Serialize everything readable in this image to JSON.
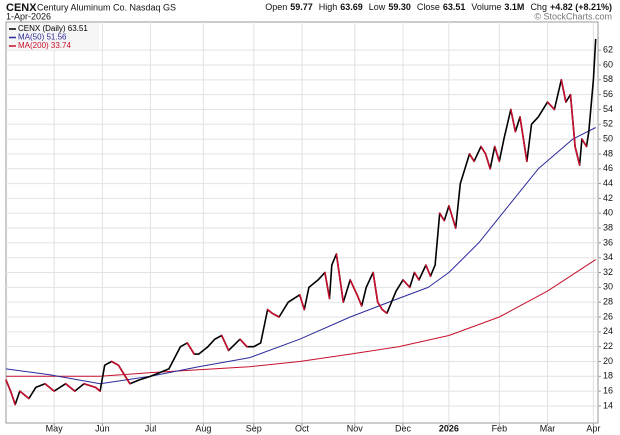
{
  "chart_data": {
    "type": "line",
    "header": {
      "symbol": "CENX",
      "name": "Century Aluminum Co. Nasdaq GS",
      "date": "1-Apr-2026",
      "copyright": "© StockCharts.com",
      "quote": [
        {
          "label": "Open",
          "value": "59.77"
        },
        {
          "label": "High",
          "value": "63.69"
        },
        {
          "label": "Low",
          "value": "59.30"
        },
        {
          "label": "Close",
          "value": "63.51"
        },
        {
          "label": "Volume",
          "value": "3.1M"
        },
        {
          "label": "Chg",
          "value": "+4.82 (+8.21%)"
        }
      ]
    },
    "x": [
      0,
      2,
      4,
      6,
      10,
      13,
      17,
      21,
      26,
      30,
      34,
      39,
      41,
      43,
      46,
      49,
      52,
      54,
      58,
      63,
      67,
      71,
      76,
      79,
      82,
      84,
      88,
      91,
      94,
      97,
      102,
      105,
      108,
      111,
      114,
      116,
      119,
      123,
      128,
      130,
      132,
      136,
      139,
      141,
      142,
      144,
      147,
      150,
      153,
      155,
      157,
      160,
      162,
      164,
      166,
      168,
      170,
      173,
      176,
      178,
      180,
      183,
      185,
      187,
      189,
      191,
      193,
      196,
      198,
      200,
      202,
      204,
      207,
      209,
      211,
      213,
      215,
      217,
      220,
      222,
      224,
      227,
      229,
      232,
      236,
      239,
      242,
      244,
      246,
      248,
      250,
      251,
      253,
      254,
      256,
      257
    ],
    "series": [
      {
        "name": "CENX (Daily) 63.51",
        "color": "#000000",
        "down_color": "#c8102e",
        "values": [
          17.5,
          16,
          14.2,
          16,
          15,
          16.5,
          17,
          16,
          17,
          16,
          17,
          16.5,
          16,
          19.5,
          20,
          19.5,
          18,
          17,
          17.5,
          18,
          18.5,
          19,
          22,
          22.5,
          21,
          21,
          22,
          23,
          23.5,
          21.5,
          23,
          22,
          22,
          22.5,
          27,
          26.5,
          26,
          28,
          29,
          27,
          30,
          31,
          32,
          28.5,
          33,
          34.5,
          28,
          31,
          29,
          27.5,
          30,
          32,
          28,
          27,
          26.5,
          28,
          29.5,
          31,
          30,
          32,
          31,
          33,
          31.5,
          33,
          40,
          39,
          41,
          38,
          44,
          46,
          48,
          47,
          49,
          48,
          46,
          49,
          47,
          50,
          54,
          51,
          53,
          47,
          52,
          53,
          55,
          54,
          58,
          55,
          56,
          49,
          46.5,
          50,
          49,
          51,
          58,
          63.51
        ]
      },
      {
        "name": "MA(50) 51.56",
        "color": "#2b2b9a",
        "x": [
          0,
          19,
          41,
          63,
          84,
          106,
          128,
          150,
          171,
          184,
          193,
          206,
          219,
          232,
          247,
          257
        ],
        "values": [
          19,
          18.2,
          17,
          18,
          19.3,
          20.5,
          23,
          26,
          28.5,
          30,
          32,
          36,
          41,
          46,
          50,
          51.56
        ]
      },
      {
        "name": "MA(200) 33.74",
        "color": "#c8102e",
        "x": [
          0,
          41,
          63,
          106,
          128,
          150,
          171,
          193,
          215,
          236,
          257
        ],
        "values": [
          18,
          18,
          18.5,
          19.3,
          20,
          21,
          22,
          23.5,
          26,
          29.5,
          33.74
        ]
      }
    ],
    "xlim": [
      0,
      258
    ],
    "xticks": [
      {
        "value": 21,
        "label": "May"
      },
      {
        "value": 42,
        "label": "Jun"
      },
      {
        "value": 63,
        "label": "Jul"
      },
      {
        "value": 86,
        "label": "Aug"
      },
      {
        "value": 108,
        "label": "Sep"
      },
      {
        "value": 129,
        "label": "Oct"
      },
      {
        "value": 152,
        "label": "Nov"
      },
      {
        "value": 173,
        "label": "Dec"
      },
      {
        "value": 193,
        "label": "2026"
      },
      {
        "value": 215,
        "label": "Feb"
      },
      {
        "value": 236,
        "label": "Mar"
      },
      {
        "value": 256,
        "label": "Apr"
      }
    ],
    "ylim": [
      11.7,
      65.8
    ],
    "yticks": [
      14,
      16,
      18,
      20,
      22,
      24,
      26,
      28,
      30,
      32,
      34,
      36,
      38,
      40,
      42,
      44,
      46,
      48,
      50,
      52,
      54,
      56,
      58,
      60,
      62
    ],
    "grid": true
  }
}
